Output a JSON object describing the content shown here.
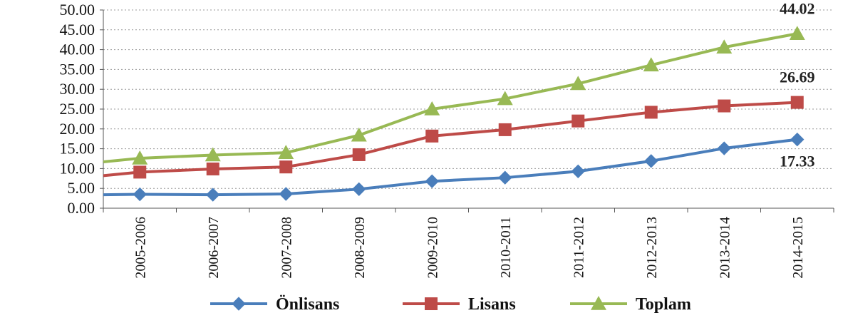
{
  "chart_data": {
    "type": "line",
    "categories": [
      "2005-2006",
      "2006-2007",
      "2007-2008",
      "2008-2009",
      "2009-2010",
      "2010-2011",
      "2011-2012",
      "2012-2013",
      "2013-2014",
      "2014-2015"
    ],
    "ylim": [
      0,
      50
    ],
    "yticks": [
      "0.00",
      "5.00",
      "10.00",
      "15.00",
      "20.00",
      "25.00",
      "30.00",
      "35.00",
      "40.00",
      "45.00",
      "50.00"
    ],
    "grid": "horizontal dotted",
    "legend_position": "bottom",
    "series": [
      {
        "name": "Önlisans",
        "color": "#4a7ebb",
        "marker": "diamond",
        "values": [
          3.5,
          3.4,
          3.6,
          4.8,
          6.8,
          7.7,
          9.3,
          11.9,
          15.1,
          17.33
        ]
      },
      {
        "name": "Lisans",
        "color": "#be4b48",
        "marker": "square",
        "values": [
          9.1,
          9.9,
          10.4,
          13.5,
          18.2,
          19.8,
          22.0,
          24.2,
          25.8,
          26.69
        ]
      },
      {
        "name": "Toplam",
        "color": "#98b954",
        "marker": "triangle",
        "values": [
          12.6,
          13.4,
          14.0,
          18.4,
          25.0,
          27.6,
          31.4,
          36.1,
          40.6,
          44.02
        ]
      }
    ],
    "start_points": {
      "Önlisans": 3.4,
      "Lisans": 8.2,
      "Toplam": 11.7
    },
    "annotations": [
      "44.02",
      "26.69",
      "17.33"
    ]
  }
}
